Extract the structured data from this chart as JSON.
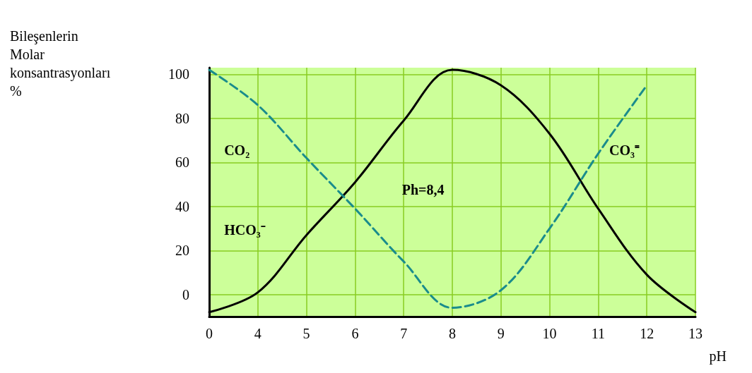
{
  "chart_data": {
    "type": "line",
    "ylabel": "Bileşenlerin\nMolar\nkonsantrasyonları\n%",
    "xlabel": "pH",
    "categories": [
      "0",
      "4",
      "5",
      "6",
      "7",
      "8",
      "9",
      "10",
      "11",
      "12",
      "13"
    ],
    "series": [
      {
        "color": "#000000",
        "line_style": "solid",
        "values": [
          -8,
          1,
          27,
          51,
          79,
          102,
          95,
          73,
          39,
          9,
          -8
        ]
      },
      {
        "color": "#1a8c8c",
        "line_style": "dashed",
        "values": [
          102,
          86,
          62,
          39,
          15,
          -6,
          2,
          30,
          64,
          95,
          null
        ]
      }
    ],
    "ylim": [
      -10,
      103
    ],
    "yticks": [
      0,
      20,
      40,
      60,
      80,
      100
    ],
    "grid": true,
    "marker": "none",
    "annotations": [
      "CO₂",
      "HCO₃⁻",
      "Ph=8,4",
      "CO₃⁼"
    ]
  }
}
